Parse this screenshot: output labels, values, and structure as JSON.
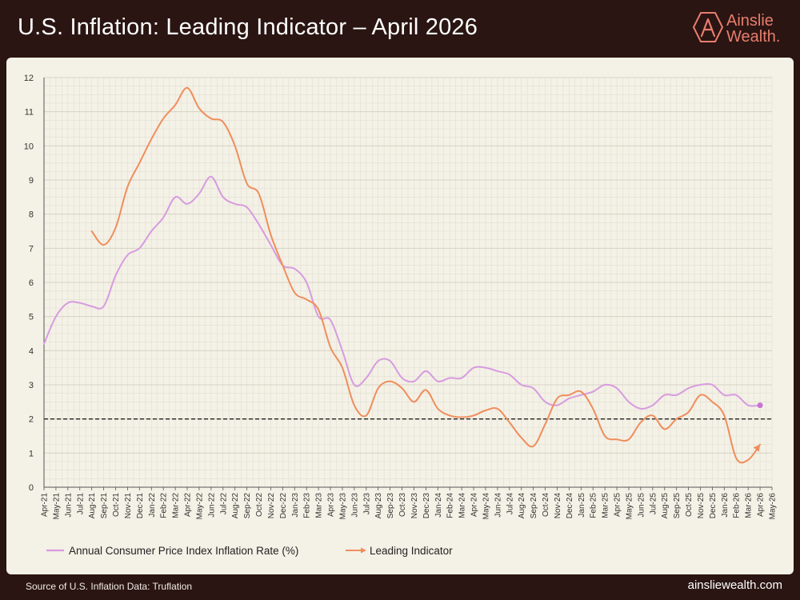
{
  "header": {
    "title": "U.S. Inflation: Leading Indicator – April 2026",
    "brand_line1": "Ainslie",
    "brand_line2": "Wealth."
  },
  "footer": {
    "source": "Source of U.S. Inflation Data: Truflation",
    "website": "ainsliewealth.com"
  },
  "colors": {
    "cpi": "#d79be0",
    "leading": "#ef8e5c",
    "brand": "#e87d6e",
    "target_line": "#222222"
  },
  "chart_data": {
    "type": "line",
    "title": "U.S. Inflation: Leading Indicator – April 2026",
    "xlabel": "",
    "ylabel": "",
    "ylim": [
      0,
      12
    ],
    "yticks": [
      0,
      1,
      2,
      3,
      4,
      5,
      6,
      7,
      8,
      9,
      10,
      11,
      12
    ],
    "grid": true,
    "legend_position": "bottom-left",
    "categories": [
      "Apr-21",
      "May-21",
      "Jun-21",
      "Jul-21",
      "Aug-21",
      "Sep-21",
      "Oct-21",
      "Nov-21",
      "Dec-21",
      "Jan-22",
      "Feb-22",
      "Mar-22",
      "Apr-22",
      "May-22",
      "Jun-22",
      "Jul-22",
      "Aug-22",
      "Sep-22",
      "Oct-22",
      "Nov-22",
      "Dec-22",
      "Jan-23",
      "Feb-23",
      "Mar-23",
      "Apr-23",
      "May-23",
      "Jun-23",
      "Jul-23",
      "Aug-23",
      "Sep-23",
      "Oct-23",
      "Nov-23",
      "Dec-23",
      "Jan-24",
      "Feb-24",
      "Mar-24",
      "Apr-24",
      "May-24",
      "Jun-24",
      "Jul-24",
      "Aug-24",
      "Sep-24",
      "Oct-24",
      "Nov-24",
      "Dec-24",
      "Jan-25",
      "Feb-25",
      "Mar-25",
      "Apr-25",
      "May-25",
      "Jun-25",
      "Jul-25",
      "Aug-25",
      "Sep-25",
      "Oct-25",
      "Nov-25",
      "Dec-25",
      "Jan-26",
      "Feb-26",
      "Mar-26",
      "Apr-26",
      "May-26"
    ],
    "tick_labels": [
      "Apr-21",
      "May-21",
      "Jun-21",
      "Jul-21",
      "Aug-21",
      "Sep-21",
      "Oct-21",
      "Nov-21",
      "Dec-21",
      "Jan-22",
      "Feb-22",
      "Mar-22",
      "Apr-22",
      "May-22",
      "Jun-22",
      "Jul-22",
      "Aug-22",
      "Sep-22",
      "Oct-22",
      "Nov-22",
      "Dec-22",
      "Jan-23",
      "Feb-23",
      "Mar-23",
      "Apr-23",
      "May-23",
      "Jun-23",
      "Jul-23",
      "Aug-23",
      "Sep-23",
      "Oct-23",
      "Nov-23",
      "Dec-23",
      "Jan-24",
      "Feb-24",
      "Mar-24",
      "Apr-24",
      "May-24",
      "Jun-24",
      "Jul-24",
      "Aug-24",
      "Sep-24",
      "Oct-24",
      "Nov-24",
      "Dec-24",
      "Jan-25",
      "Feb-25",
      "Mar-25",
      "Apr-25",
      "May-25",
      "Jun-25",
      "Jul-25",
      "Aug-25",
      "Sep-25",
      "Oct-25",
      "Nov-25",
      "Dec-25",
      "Jan-26",
      "Feb-26",
      "Mar-26",
      "Apr-26",
      "May-26"
    ],
    "reference_line": {
      "value": 2,
      "style": "dashed"
    },
    "series": [
      {
        "name": "Annual Consumer Price Index Inflation Rate (%)",
        "marker_end": "dot",
        "values": [
          4.2,
          5.0,
          5.4,
          5.4,
          5.3,
          5.3,
          6.2,
          6.8,
          7.0,
          7.5,
          7.9,
          8.5,
          8.3,
          8.6,
          9.1,
          8.5,
          8.3,
          8.2,
          7.7,
          7.1,
          6.5,
          6.4,
          6.0,
          5.0,
          4.9,
          4.0,
          3.0,
          3.2,
          3.7,
          3.7,
          3.2,
          3.1,
          3.4,
          3.1,
          3.2,
          3.2,
          3.5,
          3.5,
          3.4,
          3.3,
          3.0,
          2.9,
          2.5,
          2.4,
          2.6,
          2.7,
          2.8,
          3.0,
          2.9,
          2.5,
          2.3,
          2.4,
          2.7,
          2.7,
          2.9,
          3.0,
          3.0,
          2.7,
          2.7,
          2.4,
          2.4,
          null
        ]
      },
      {
        "name": "Leading Indicator",
        "marker_end": "arrow",
        "values": [
          null,
          null,
          null,
          null,
          7.5,
          7.1,
          7.6,
          8.8,
          9.5,
          10.2,
          10.8,
          11.2,
          11.7,
          11.1,
          10.8,
          10.7,
          10.0,
          8.9,
          8.6,
          7.4,
          6.5,
          5.7,
          5.5,
          5.2,
          4.1,
          3.5,
          2.4,
          2.1,
          2.9,
          3.1,
          2.9,
          2.5,
          2.85,
          2.3,
          2.1,
          2.05,
          2.1,
          2.25,
          2.3,
          1.9,
          1.45,
          1.2,
          1.85,
          2.6,
          2.7,
          2.8,
          2.3,
          1.5,
          1.4,
          1.4,
          1.9,
          2.1,
          1.7,
          2.0,
          2.2,
          2.7,
          2.5,
          2.1,
          0.85,
          0.8,
          1.25,
          null
        ]
      }
    ]
  }
}
